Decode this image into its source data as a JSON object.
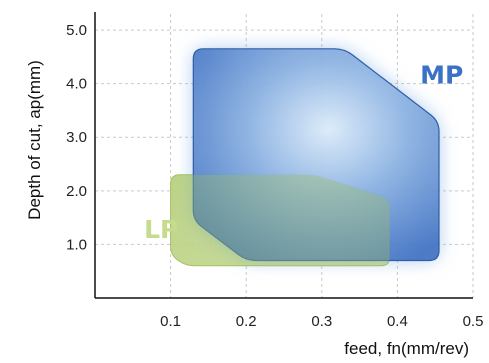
{
  "chart_data": {
    "type": "area",
    "title": "",
    "xlabel": "feed, fn(mm/rev)",
    "ylabel": "Depth of cut, ap(mm)",
    "xlim": [
      0.0,
      0.5
    ],
    "ylim": [
      0.0,
      5.3
    ],
    "x_ticks": [
      "0.1",
      "0.2",
      "0.3",
      "0.4",
      "0.5"
    ],
    "x_tick_values": [
      0.1,
      0.2,
      0.3,
      0.4,
      0.5
    ],
    "y_ticks": [
      "1.0",
      "2.0",
      "3.0",
      "4.0",
      "5.0"
    ],
    "y_tick_values": [
      1.0,
      2.0,
      3.0,
      4.0,
      5.0
    ],
    "grid": true,
    "series": [
      {
        "name": "LP",
        "color": "#b6cf6e",
        "points": [
          [
            0.1,
            2.3
          ],
          [
            0.29,
            2.3
          ],
          [
            0.39,
            1.85
          ],
          [
            0.39,
            0.6
          ],
          [
            0.12,
            0.6
          ],
          [
            0.1,
            0.8
          ]
        ]
      },
      {
        "name": "MP",
        "color": "#3f72c4",
        "points": [
          [
            0.13,
            4.65
          ],
          [
            0.33,
            4.65
          ],
          [
            0.455,
            3.3
          ],
          [
            0.455,
            0.7
          ],
          [
            0.2,
            0.7
          ],
          [
            0.13,
            1.45
          ]
        ]
      }
    ]
  }
}
